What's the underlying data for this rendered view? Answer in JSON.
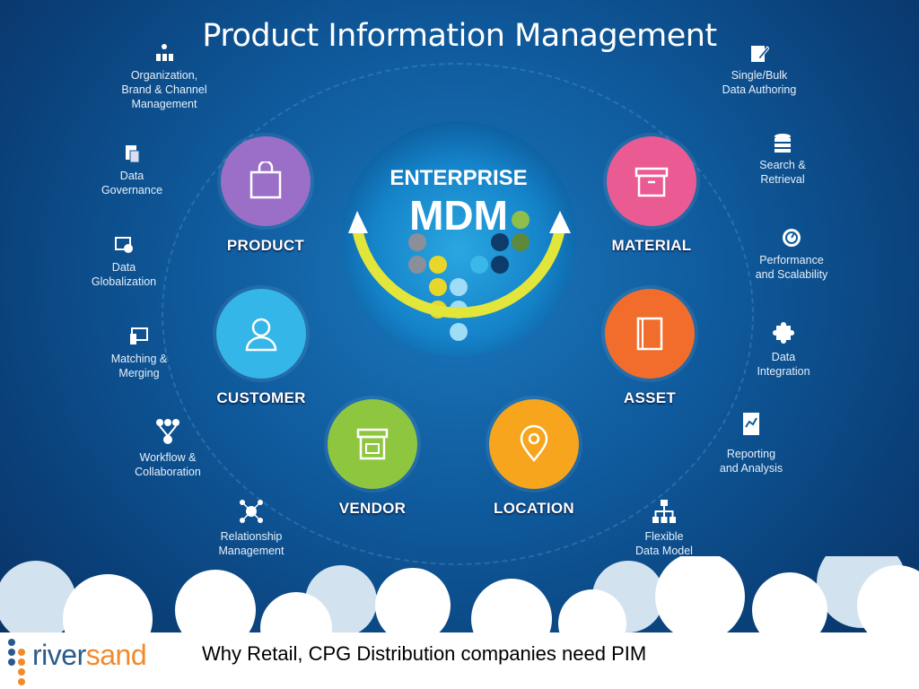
{
  "title": "Product Information Management",
  "center": {
    "line1": "ENTERPRISE",
    "line2": "MDM"
  },
  "domains": [
    {
      "label": "PRODUCT",
      "color": "#9b6fc7",
      "icon": "shopping-bag-icon"
    },
    {
      "label": "MATERIAL",
      "color": "#ea5b94",
      "icon": "box-icon"
    },
    {
      "label": "CUSTOMER",
      "color": "#35b6e8",
      "icon": "person-icon"
    },
    {
      "label": "ASSET",
      "color": "#f26d2b",
      "icon": "book-icon"
    },
    {
      "label": "VENDOR",
      "color": "#8fc640",
      "icon": "storefront-icon"
    },
    {
      "label": "LOCATION",
      "color": "#f7a51d",
      "icon": "map-pin-icon"
    }
  ],
  "features_left": [
    {
      "line1": "Organization,",
      "line2": "Brand & Channel",
      "line3": "Management",
      "icon": "org-chart-icon"
    },
    {
      "line1": "Data",
      "line2": "Governance",
      "icon": "document-icon"
    },
    {
      "line1": "Data",
      "line2": "Globalization",
      "icon": "globe-screen-icon"
    },
    {
      "line1": "Matching &",
      "line2": "Merging",
      "icon": "monitor-icon"
    },
    {
      "line1": "Workflow &",
      "line2": "Collaboration",
      "icon": "workflow-icon"
    },
    {
      "line1": "Relationship",
      "line2": "Management",
      "icon": "network-icon"
    }
  ],
  "features_right": [
    {
      "line1": "Single/Bulk",
      "line2": "Data Authoring",
      "icon": "edit-icon"
    },
    {
      "line1": "Search &",
      "line2": "Retrieval",
      "icon": "database-icon"
    },
    {
      "line1": "Performance",
      "line2": "and Scalability",
      "icon": "gauge-icon"
    },
    {
      "line1": "Data",
      "line2": "Integration",
      "icon": "puzzle-icon"
    },
    {
      "line1": "Reporting",
      "line2": "and Analysis",
      "icon": "report-icon"
    },
    {
      "line1": "Flexible",
      "line2": "Data Model",
      "icon": "hierarchy-icon"
    }
  ],
  "footer": "Why Retail, CPG Distribution companies need PIM",
  "logo": {
    "part1": "river",
    "part2": "sand",
    "color1": "#2a5a8c",
    "color2": "#f08a2c"
  }
}
